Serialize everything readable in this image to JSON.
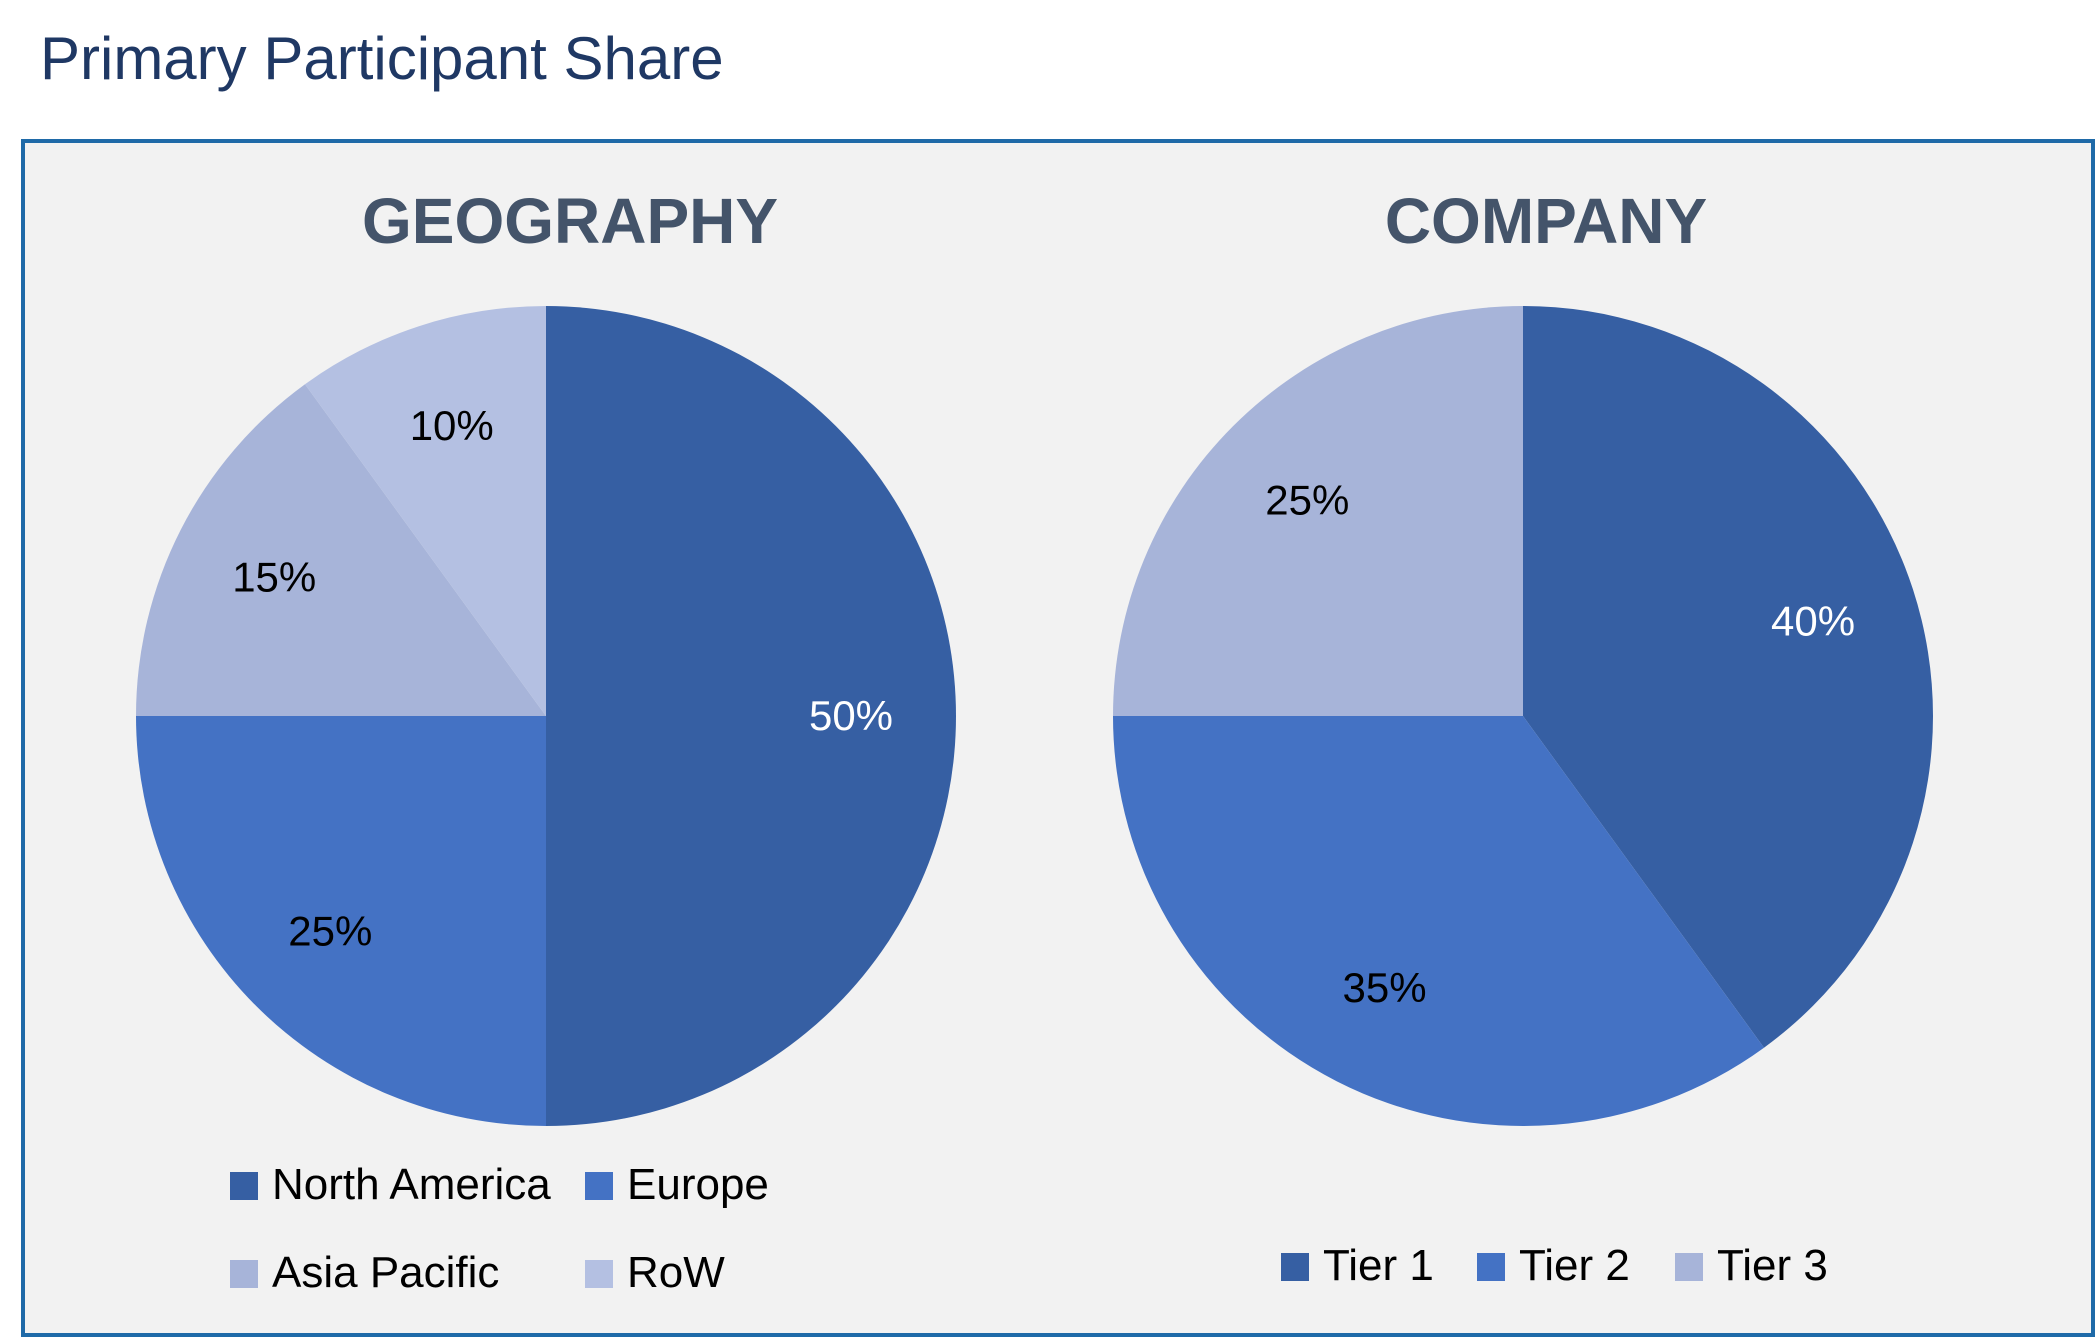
{
  "page": {
    "title": "Primary Participant Share"
  },
  "chart_data": [
    {
      "type": "pie",
      "title": "GEOGRAPHY",
      "categories": [
        "North America",
        "Europe",
        "Asia Pacific",
        "RoW"
      ],
      "values": [
        50,
        25,
        15,
        10
      ],
      "value_labels": [
        "50%",
        "25%",
        "15%",
        "10%"
      ],
      "colors": [
        "#365fa3",
        "#4472c4",
        "#a7b4d9",
        "#b4c0e2"
      ],
      "label_colors": [
        "#ffffff",
        "#000000",
        "#000000",
        "#000000"
      ],
      "legend_position": "bottom",
      "start": "12 o'clock",
      "direction": "clockwise"
    },
    {
      "type": "pie",
      "title": "COMPANY",
      "categories": [
        "Tier 1",
        "Tier 2",
        "Tier 3"
      ],
      "values": [
        40,
        35,
        25
      ],
      "value_labels": [
        "40%",
        "35%",
        "25%"
      ],
      "colors": [
        "#365fa3",
        "#4472c4",
        "#a7b4d9"
      ],
      "label_colors": [
        "#ffffff",
        "#000000",
        "#000000"
      ],
      "legend_position": "bottom",
      "start": "12 o'clock",
      "direction": "clockwise"
    }
  ],
  "theme": {
    "title_color": "#1f3864",
    "chart_title_color": "#44546a",
    "panel_background": "#f2f2f2",
    "panel_border": "#1f6aa8"
  }
}
